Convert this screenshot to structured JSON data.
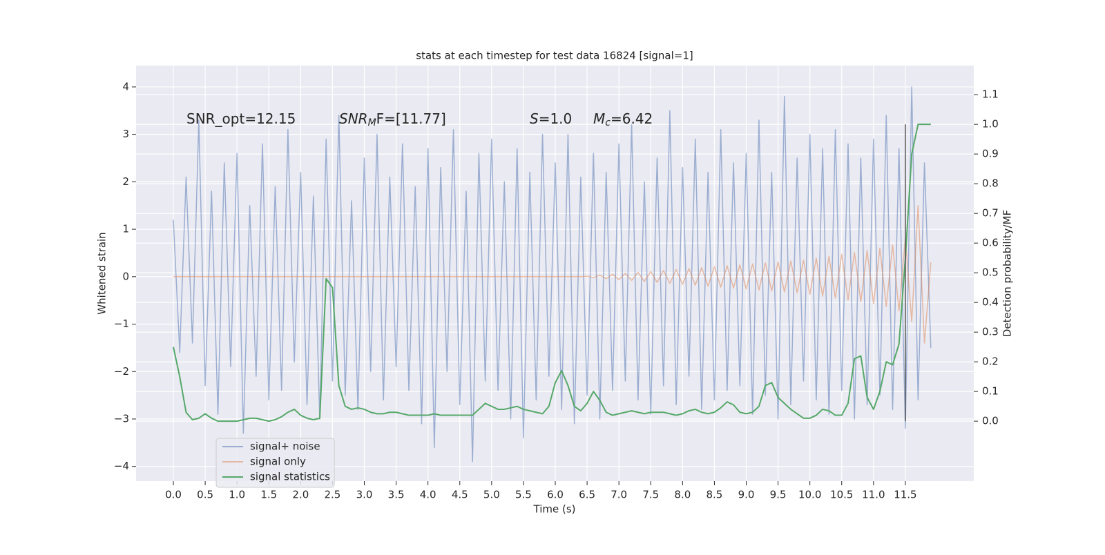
{
  "chart_data": {
    "type": "line",
    "title": "stats at each timestep for test data 16824 [signal=1]",
    "xlabel": "Time (s)",
    "ylabel": "Whitened strain",
    "y2label": "Detection probability/MF",
    "x": [
      0,
      0.1,
      0.2,
      0.3,
      0.4,
      0.5,
      0.6,
      0.7,
      0.8,
      0.9,
      1,
      1.1,
      1.2,
      1.3,
      1.4,
      1.5,
      1.6,
      1.7,
      1.8,
      1.9,
      2,
      2.1,
      2.2,
      2.3,
      2.4,
      2.5,
      2.6,
      2.7,
      2.8,
      2.9,
      3,
      3.1,
      3.2,
      3.3,
      3.4,
      3.5,
      3.6,
      3.7,
      3.8,
      3.9,
      4,
      4.1,
      4.2,
      4.3,
      4.4,
      4.5,
      4.6,
      4.7,
      4.8,
      4.9,
      5,
      5.1,
      5.2,
      5.3,
      5.4,
      5.5,
      5.6,
      5.7,
      5.8,
      5.9,
      6,
      6.1,
      6.2,
      6.3,
      6.4,
      6.5,
      6.6,
      6.7,
      6.8,
      6.9,
      7,
      7.1,
      7.2,
      7.3,
      7.4,
      7.5,
      7.6,
      7.7,
      7.8,
      7.9,
      8,
      8.1,
      8.2,
      8.3,
      8.4,
      8.5,
      8.6,
      8.7,
      8.8,
      8.9,
      9,
      9.1,
      9.2,
      9.3,
      9.4,
      9.5,
      9.6,
      9.7,
      9.8,
      9.9,
      10,
      10.1,
      10.2,
      10.3,
      10.4,
      10.5,
      10.6,
      10.7,
      10.8,
      10.9,
      11,
      11.1,
      11.2,
      11.3,
      11.4,
      11.5,
      11.6,
      11.7,
      11.8,
      11.9
    ],
    "series": [
      {
        "name": "signal+ noise",
        "color": "#4c72b0",
        "alpha": 0.5,
        "values": [
          1.2,
          -1.6,
          2.1,
          -1.4,
          3.3,
          -2.3,
          1.8,
          -2.9,
          2.4,
          -1.9,
          2.6,
          -3.3,
          1.5,
          -2.1,
          2.8,
          -2.6,
          1.9,
          -2.4,
          3.1,
          -1.8,
          2.2,
          -2.7,
          1.7,
          -3.0,
          2.9,
          -2.2,
          3.4,
          -2.5,
          1.6,
          -2.8,
          2.5,
          -2.0,
          3.0,
          -2.6,
          2.1,
          -1.9,
          2.8,
          -2.4,
          1.9,
          -3.1,
          2.7,
          -3.6,
          2.3,
          -2.0,
          3.1,
          -2.7,
          1.8,
          -3.9,
          2.6,
          -2.2,
          2.9,
          -2.4,
          2.0,
          -3.0,
          2.7,
          -3.4,
          2.2,
          -2.6,
          3.0,
          -2.1,
          2.4,
          -2.8,
          3.0,
          -3.1,
          2.1,
          -2.5,
          2.6,
          -3.0,
          2.2,
          -2.4,
          2.8,
          -2.2,
          3.2,
          -2.6,
          2.0,
          -2.9,
          2.5,
          -2.3,
          3.5,
          -2.7,
          2.3,
          -2.1,
          2.9,
          -2.8,
          2.2,
          -2.6,
          3.1,
          -2.4,
          2.4,
          -2.3,
          2.6,
          -2.9,
          3.3,
          -2.5,
          2.2,
          -3.0,
          3.8,
          -2.7,
          2.5,
          -2.2,
          3.0,
          -2.6,
          2.7,
          -2.9,
          3.1,
          -2.4,
          2.8,
          -3.0,
          2.5,
          -2.7,
          2.9,
          -2.5,
          3.4,
          -2.8,
          2.7,
          -3.2,
          4.0,
          -2.6,
          2.4,
          -1.5
        ]
      },
      {
        "name": "signal only",
        "color": "#dd8452",
        "alpha": 0.5,
        "values": [
          0,
          0,
          0,
          0,
          0,
          0,
          0,
          0,
          0,
          0,
          0,
          0,
          0,
          0,
          0,
          0,
          0,
          0,
          0,
          0,
          0,
          0,
          0,
          0,
          0,
          0,
          0,
          0,
          0,
          0,
          0,
          0,
          0,
          0,
          0,
          0,
          0,
          0,
          0,
          0,
          0,
          0,
          0,
          0,
          0,
          0,
          0,
          0,
          0,
          0,
          0,
          0,
          0,
          0,
          0,
          0,
          0,
          0,
          0,
          0,
          0,
          0,
          0,
          0,
          0,
          0.01,
          -0.02,
          0.03,
          -0.04,
          0.05,
          -0.06,
          0.07,
          -0.08,
          0.09,
          -0.1,
          0.11,
          -0.12,
          0.13,
          -0.14,
          0.15,
          -0.16,
          0.17,
          -0.18,
          0.19,
          -0.2,
          0.21,
          -0.22,
          0.23,
          -0.24,
          0.25,
          -0.26,
          0.27,
          -0.28,
          0.29,
          -0.3,
          0.31,
          -0.32,
          0.33,
          -0.34,
          0.35,
          -0.37,
          0.39,
          -0.41,
          0.43,
          -0.45,
          0.47,
          -0.49,
          0.51,
          -0.53,
          0.55,
          -0.57,
          0.6,
          -0.63,
          0.67,
          -0.72,
          0.8,
          -0.95,
          1.5,
          -1.4,
          0.3
        ]
      },
      {
        "name": "signal statistics",
        "color": "#55a868",
        "alpha": 1,
        "axis": "y2",
        "values": [
          0.25,
          0.15,
          0.03,
          0.005,
          0.01,
          0.025,
          0.01,
          0,
          0,
          0,
          0,
          0.005,
          0.01,
          0.01,
          0.005,
          0,
          0.005,
          0.015,
          0.03,
          0.04,
          0.02,
          0.01,
          0.005,
          0.01,
          0.48,
          0.45,
          0.12,
          0.05,
          0.04,
          0.045,
          0.04,
          0.03,
          0.025,
          0.025,
          0.03,
          0.03,
          0.025,
          0.02,
          0.02,
          0.02,
          0.02,
          0.025,
          0.02,
          0.02,
          0.02,
          0.02,
          0.02,
          0.02,
          0.04,
          0.06,
          0.05,
          0.04,
          0.04,
          0.045,
          0.05,
          0.04,
          0.035,
          0.03,
          0.025,
          0.05,
          0.13,
          0.17,
          0.12,
          0.05,
          0.035,
          0.06,
          0.1,
          0.07,
          0.03,
          0.02,
          0.025,
          0.03,
          0.035,
          0.03,
          0.025,
          0.03,
          0.03,
          0.03,
          0.025,
          0.02,
          0.025,
          0.035,
          0.04,
          0.03,
          0.025,
          0.03,
          0.045,
          0.065,
          0.055,
          0.03,
          0.025,
          0.03,
          0.05,
          0.12,
          0.13,
          0.08,
          0.06,
          0.04,
          0.025,
          0.01,
          0.01,
          0.02,
          0.04,
          0.035,
          0.02,
          0.02,
          0.06,
          0.21,
          0.22,
          0.08,
          0.04,
          0.1,
          0.2,
          0.19,
          0.26,
          0.55,
          0.9,
          1.0,
          1.0,
          1.0
        ]
      }
    ],
    "vlines": [
      {
        "x": 11.5,
        "ymin": 0,
        "ymax": 1.0,
        "axis": "y2",
        "color": "#555555"
      }
    ],
    "annotations": [
      {
        "text": "SNR_opt=12.15"
      },
      {
        "main": "SNR",
        "sub": "M",
        "rest": "F=[11.77]"
      },
      {
        "main": "S",
        "rest": "=1.0"
      },
      {
        "main": "M",
        "sub": "c",
        "rest": "=6.42"
      }
    ],
    "xlim": [
      -0.586,
      12.575
    ],
    "ylim": [
      -4.31,
      4.45
    ],
    "y2lim": [
      -0.202,
      1.198
    ],
    "xticks": [
      {
        "value": 0,
        "label": "0.0"
      },
      0.5,
      {
        "value": 1,
        "label": "1.0"
      },
      1.5,
      {
        "value": 2,
        "label": "2.0"
      },
      2.5,
      {
        "value": 3,
        "label": "3.0"
      },
      3.5,
      {
        "value": 4,
        "label": "4.0"
      },
      4.5,
      {
        "value": 5,
        "label": "5.0"
      },
      5.5,
      {
        "value": 6,
        "label": "6.0"
      },
      6.5,
      {
        "value": 7,
        "label": "7.0"
      },
      7.5,
      {
        "value": 8,
        "label": "8.0"
      },
      8.5,
      {
        "value": 9,
        "label": "9.0"
      },
      9.5,
      {
        "value": 10,
        "label": "10.0"
      },
      10.5,
      {
        "value": 11,
        "label": "11.0"
      },
      11.5
    ],
    "yticks": [
      {
        "value": -4,
        "label": "−4"
      },
      {
        "value": -3,
        "label": "−3"
      },
      {
        "value": -2,
        "label": "−2"
      },
      {
        "value": -1,
        "label": "−1"
      },
      0,
      1,
      2,
      3,
      4
    ],
    "y2ticks": [
      {
        "value": 0,
        "label": "0.0"
      },
      0.1,
      0.2,
      0.3,
      0.4,
      0.5,
      0.6,
      0.7,
      0.8,
      0.9,
      {
        "value": 1,
        "label": "1.0"
      },
      1.1
    ],
    "grid": true,
    "legend": "lower left"
  }
}
